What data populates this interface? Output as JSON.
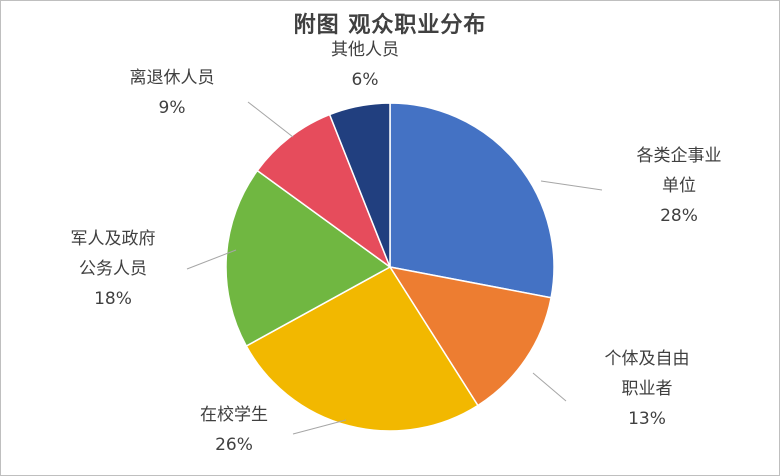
{
  "chart_data": {
    "type": "pie",
    "title": "附图  观众职业分布",
    "slices": [
      {
        "lines": [
          "各类企事业",
          "单位"
        ],
        "pct_label": "28%",
        "value": 28,
        "color": "#4472C4"
      },
      {
        "lines": [
          "个体及自由",
          "职业者"
        ],
        "pct_label": "13%",
        "value": 13,
        "color": "#ED7D31"
      },
      {
        "lines": [
          "在校学生"
        ],
        "pct_label": "26%",
        "value": 26,
        "color": "#F2B800"
      },
      {
        "lines": [
          "军人及政府",
          "公务人员"
        ],
        "pct_label": "18%",
        "value": 18,
        "color": "#70B741"
      },
      {
        "lines": [
          "离退休人员"
        ],
        "pct_label": "9%",
        "value": 9,
        "color": "#E64C5C"
      },
      {
        "lines": [
          "其他人员"
        ],
        "pct_label": "6%",
        "value": 6,
        "color": "#213F7F"
      }
    ],
    "start_angle_deg": 0,
    "direction": "clockwise",
    "legend": "none",
    "leader_color": "#A6A6A6"
  }
}
